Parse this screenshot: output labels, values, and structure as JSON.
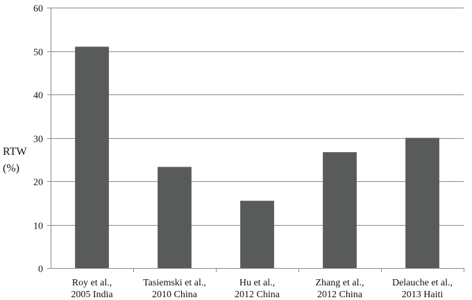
{
  "chart_data": {
    "type": "bar",
    "title": "",
    "xlabel": "",
    "ylabel": [
      "RTW",
      "(%)"
    ],
    "ylim": [
      0,
      60
    ],
    "yticks": [
      0,
      10,
      20,
      30,
      40,
      50,
      60
    ],
    "grid": true,
    "bar_color": "#595b5b",
    "categories": [
      [
        "Roy et al.,",
        "2005 India"
      ],
      [
        "Tasiemski et al.,",
        "2010 China"
      ],
      [
        "Hu et al.,",
        "2012 China"
      ],
      [
        "Zhang et al.,",
        "2012 China"
      ],
      [
        "Delauche et al.,",
        "2013 Haiti"
      ]
    ],
    "values": [
      51,
      23.3,
      15.5,
      26.7,
      30
    ]
  }
}
